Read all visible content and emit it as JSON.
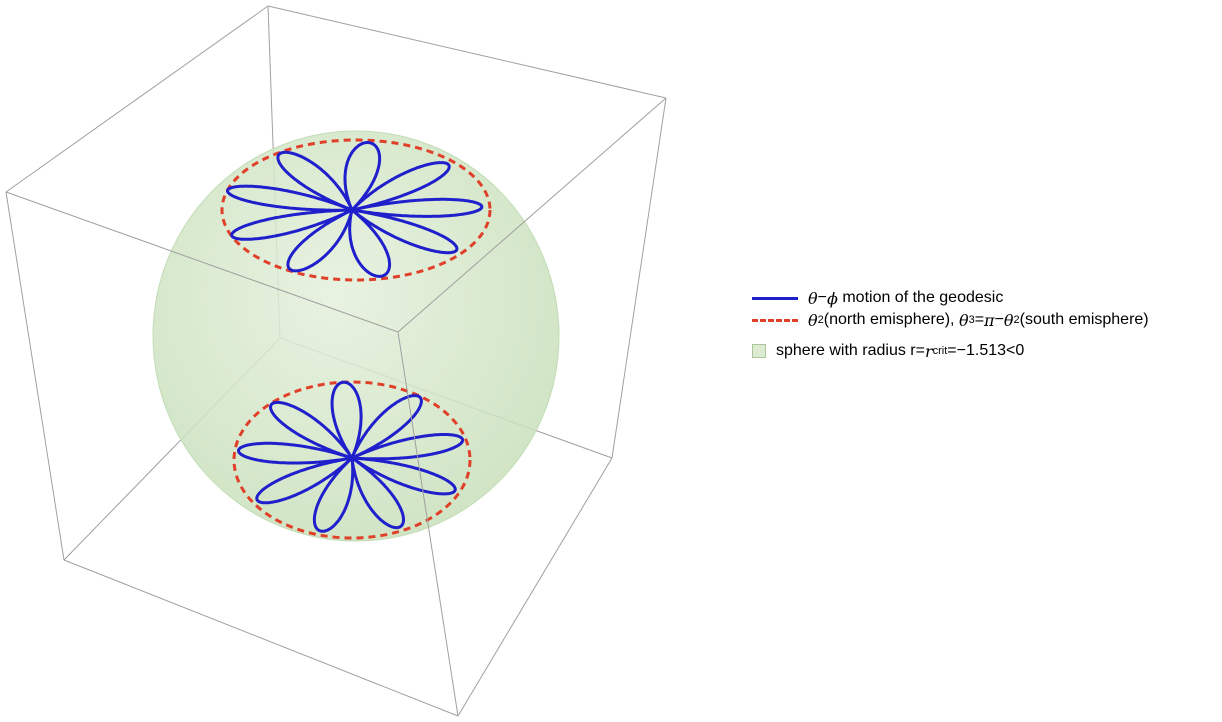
{
  "legend": {
    "geodesic": {
      "greek_theta": "θ",
      "dash": "−",
      "greek_phi": "ϕ",
      "text": " motion of the geodesic"
    },
    "orbit_bounds": {
      "theta": "θ",
      "sub2": "2",
      "north": "(north emisphere), ",
      "sub3": "3",
      "eq": "=",
      "pi": "π",
      "minus": "−",
      "south": "(south emisphere)"
    },
    "sphere": {
      "text": "sphere with radius r=",
      "r": "r",
      "sub_crit": "crit",
      "value": "=−1.513<0"
    }
  },
  "colors": {
    "geodesic": "#1f1fcc",
    "bound_curve": "#e0402a",
    "sphere_fill": "#d4e8c8",
    "box_edges": "#9a9a9a"
  },
  "scene": {
    "bounding_box": true,
    "petals_north": 9,
    "petals_south": 9
  }
}
